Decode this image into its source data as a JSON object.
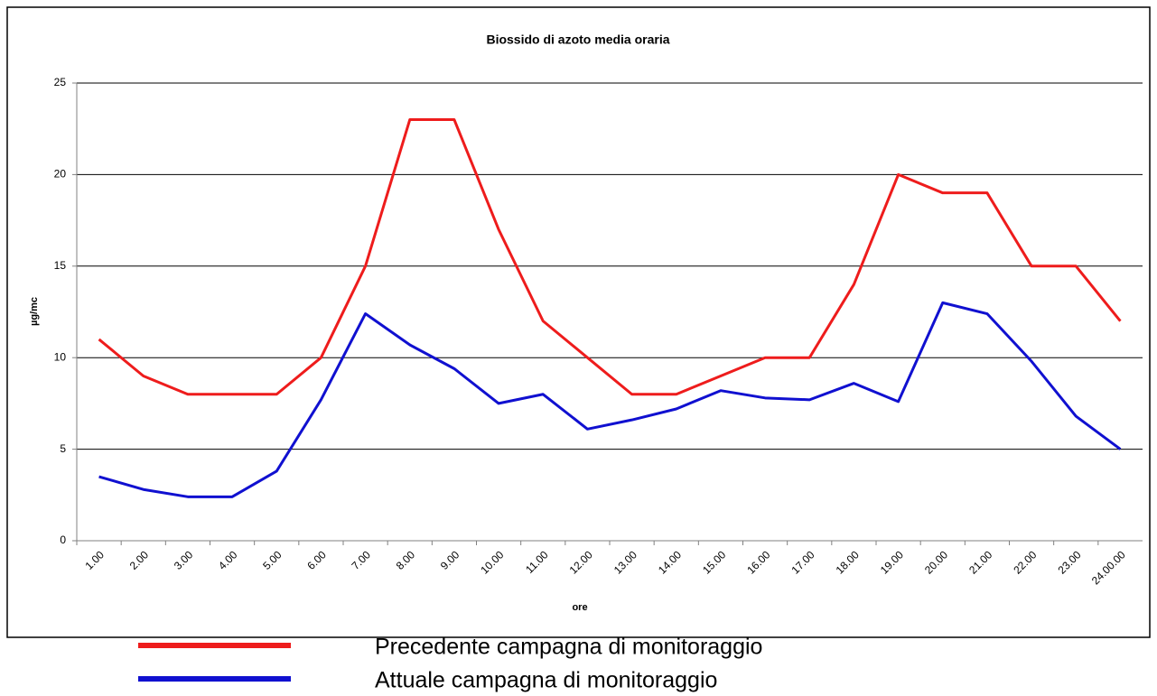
{
  "chart_data": {
    "type": "line",
    "title": "Biossido di azoto media oraria",
    "xlabel": "ore",
    "ylabel": "µg/mc",
    "categories": [
      "1.00",
      "2.00",
      "3.00",
      "4.00",
      "5.00",
      "6.00",
      "7.00",
      "8.00",
      "9.00",
      "10.00",
      "11.00",
      "12.00",
      "13.00",
      "14.00",
      "15.00",
      "16.00",
      "17.00",
      "18.00",
      "19.00",
      "20.00",
      "21.00",
      "22.00",
      "23.00",
      "24.00.00"
    ],
    "series": [
      {
        "name": "Precedente campagna di monitoraggio",
        "color": "#ee1c1c",
        "values": [
          11,
          9,
          8,
          8,
          8,
          10,
          15,
          23,
          23,
          17,
          12,
          10,
          8,
          8,
          9,
          10,
          10,
          14,
          20,
          19,
          19,
          15,
          15,
          12
        ]
      },
      {
        "name": "Attuale campagna di monitoraggio",
        "color": "#1010d0",
        "values": [
          3.5,
          2.8,
          2.4,
          2.4,
          3.8,
          7.7,
          12.4,
          10.7,
          9.4,
          7.5,
          8.0,
          6.1,
          6.6,
          7.2,
          8.2,
          7.8,
          7.7,
          8.6,
          7.6,
          13,
          12.4,
          9.8,
          6.8,
          5.0
        ]
      }
    ],
    "ylim": [
      0,
      25
    ],
    "yticks": [
      0,
      5,
      10,
      15,
      20,
      25
    ],
    "grid": true
  }
}
